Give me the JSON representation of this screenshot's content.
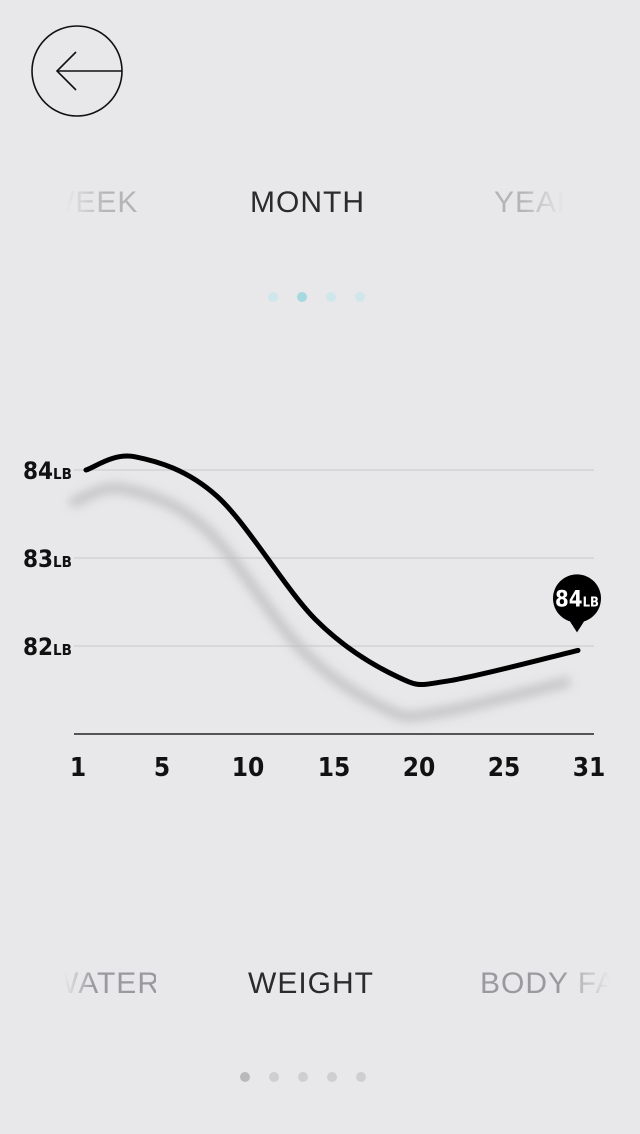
{
  "header": {
    "back_icon": "arrow-left-circle-icon"
  },
  "period_tabs": [
    {
      "label": "WEEK"
    },
    {
      "label": "MONTH"
    },
    {
      "label": "YEAR"
    }
  ],
  "period_pager": {
    "count": 4,
    "active_index": 1
  },
  "chart_data": {
    "type": "line",
    "x_ticks": [
      "1",
      "5",
      "10",
      "15",
      "20",
      "25",
      "31"
    ],
    "y_ticks": [
      {
        "value": "84",
        "unit": "LB"
      },
      {
        "value": "83",
        "unit": "LB"
      },
      {
        "value": "82",
        "unit": "LB"
      }
    ],
    "series": [
      {
        "x": [
          1,
          4,
          9,
          15,
          20,
          23,
          31
        ],
        "y": [
          84.0,
          84.15,
          83.7,
          82.3,
          81.65,
          81.6,
          81.95
        ]
      }
    ],
    "xlim": [
      1,
      31
    ],
    "ylim": [
      81,
      84
    ],
    "marker": {
      "value": "84",
      "unit": "LB"
    },
    "line_color": "#000000",
    "grid_color": "#c8c8ca"
  },
  "metric_tabs": [
    {
      "label": "WATER"
    },
    {
      "label": "WEIGHT"
    },
    {
      "label": "BODY FAT"
    }
  ],
  "metric_pager": {
    "count": 5,
    "active_index": 0
  }
}
